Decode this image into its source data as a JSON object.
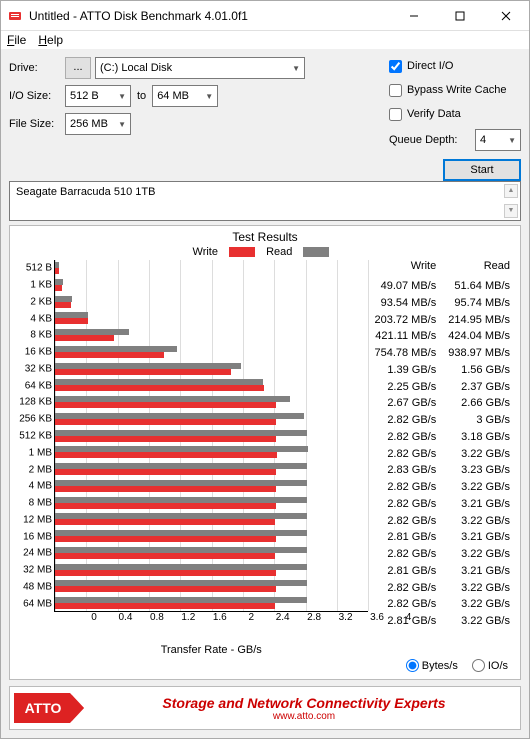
{
  "window": {
    "title": "Untitled - ATTO Disk Benchmark 4.01.0f1"
  },
  "menu": {
    "file": "File",
    "help": "Help"
  },
  "controls": {
    "drive_label": "Drive:",
    "drive_btn": "...",
    "drive_value": "(C:) Local Disk",
    "iosize_label": "I/O Size:",
    "iosize_from": "512 B",
    "iosize_to_label": "to",
    "iosize_to": "64 MB",
    "filesize_label": "File Size:",
    "filesize_value": "256 MB",
    "direct_io": "Direct I/O",
    "bypass": "Bypass Write Cache",
    "verify": "Verify Data",
    "queue_label": "Queue Depth:",
    "queue_value": "4",
    "start": "Start"
  },
  "description": "Seagate Barracuda 510 1TB",
  "chart": {
    "title": "Test Results",
    "legend_write": "Write",
    "legend_read": "Read",
    "write_color": "#e83030",
    "read_color": "#808080",
    "xaxis_title": "Transfer Rate - GB/s",
    "xmax_gb": 4.0,
    "xticks": [
      0,
      0.4,
      0.8,
      1.2,
      1.6,
      2.0,
      2.4,
      2.8,
      3.2,
      3.6,
      4.0
    ],
    "rows": [
      {
        "label": "512 B",
        "write_gb": 0.04907,
        "read_gb": 0.05164,
        "write_str": "49.07 MB/s",
        "read_str": "51.64 MB/s"
      },
      {
        "label": "1 KB",
        "write_gb": 0.09354,
        "read_gb": 0.09574,
        "write_str": "93.54 MB/s",
        "read_str": "95.74 MB/s"
      },
      {
        "label": "2 KB",
        "write_gb": 0.20372,
        "read_gb": 0.21495,
        "write_str": "203.72 MB/s",
        "read_str": "214.95 MB/s"
      },
      {
        "label": "4 KB",
        "write_gb": 0.42111,
        "read_gb": 0.42404,
        "write_str": "421.11 MB/s",
        "read_str": "424.04 MB/s"
      },
      {
        "label": "8 KB",
        "write_gb": 0.75478,
        "read_gb": 0.93897,
        "write_str": "754.78 MB/s",
        "read_str": "938.97 MB/s"
      },
      {
        "label": "16 KB",
        "write_gb": 1.39,
        "read_gb": 1.56,
        "write_str": "1.39 GB/s",
        "read_str": "1.56 GB/s"
      },
      {
        "label": "32 KB",
        "write_gb": 2.25,
        "read_gb": 2.37,
        "write_str": "2.25 GB/s",
        "read_str": "2.37 GB/s"
      },
      {
        "label": "64 KB",
        "write_gb": 2.67,
        "read_gb": 2.66,
        "write_str": "2.67 GB/s",
        "read_str": "2.66 GB/s"
      },
      {
        "label": "128 KB",
        "write_gb": 2.82,
        "read_gb": 3.0,
        "write_str": "2.82 GB/s",
        "read_str": "3 GB/s"
      },
      {
        "label": "256 KB",
        "write_gb": 2.82,
        "read_gb": 3.18,
        "write_str": "2.82 GB/s",
        "read_str": "3.18 GB/s"
      },
      {
        "label": "512 KB",
        "write_gb": 2.82,
        "read_gb": 3.22,
        "write_str": "2.82 GB/s",
        "read_str": "3.22 GB/s"
      },
      {
        "label": "1 MB",
        "write_gb": 2.83,
        "read_gb": 3.23,
        "write_str": "2.83 GB/s",
        "read_str": "3.23 GB/s"
      },
      {
        "label": "2 MB",
        "write_gb": 2.82,
        "read_gb": 3.22,
        "write_str": "2.82 GB/s",
        "read_str": "3.22 GB/s"
      },
      {
        "label": "4 MB",
        "write_gb": 2.82,
        "read_gb": 3.21,
        "write_str": "2.82 GB/s",
        "read_str": "3.21 GB/s"
      },
      {
        "label": "8 MB",
        "write_gb": 2.82,
        "read_gb": 3.22,
        "write_str": "2.82 GB/s",
        "read_str": "3.22 GB/s"
      },
      {
        "label": "12 MB",
        "write_gb": 2.81,
        "read_gb": 3.21,
        "write_str": "2.81 GB/s",
        "read_str": "3.21 GB/s"
      },
      {
        "label": "16 MB",
        "write_gb": 2.82,
        "read_gb": 3.22,
        "write_str": "2.82 GB/s",
        "read_str": "3.22 GB/s"
      },
      {
        "label": "24 MB",
        "write_gb": 2.81,
        "read_gb": 3.21,
        "write_str": "2.81 GB/s",
        "read_str": "3.21 GB/s"
      },
      {
        "label": "32 MB",
        "write_gb": 2.82,
        "read_gb": 3.22,
        "write_str": "2.82 GB/s",
        "read_str": "3.22 GB/s"
      },
      {
        "label": "48 MB",
        "write_gb": 2.82,
        "read_gb": 3.22,
        "write_str": "2.82 GB/s",
        "read_str": "3.22 GB/s"
      },
      {
        "label": "64 MB",
        "write_gb": 2.81,
        "read_gb": 3.22,
        "write_str": "2.81 GB/s",
        "read_str": "3.22 GB/s"
      }
    ]
  },
  "headers": {
    "write": "Write",
    "read": "Read"
  },
  "units": {
    "bytes": "Bytes/s",
    "io": "IO/s"
  },
  "footer": {
    "logo": "ATTO",
    "line1": "Storage and Network Connectivity Experts",
    "line2": "www.atto.com"
  }
}
